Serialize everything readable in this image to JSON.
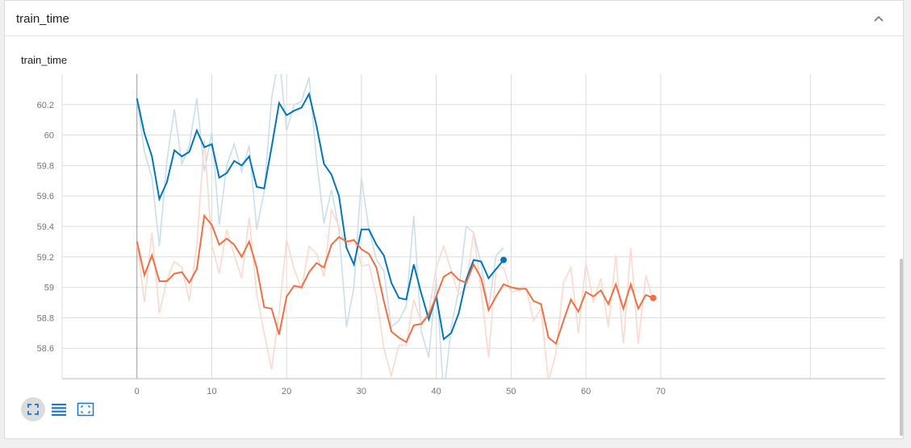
{
  "card": {
    "title": "train_time",
    "collapse_icon": "chevron-up-icon"
  },
  "chart_data": {
    "type": "line",
    "title": "train_time",
    "xlabel": "",
    "ylabel": "",
    "xlim": [
      -10,
      100
    ],
    "ylim": [
      58.4,
      60.4
    ],
    "x_ticks": [
      "0",
      "10",
      "20",
      "30",
      "40",
      "50",
      "60",
      "70"
    ],
    "y_ticks": [
      "58.6",
      "58.8",
      "59",
      "59.2",
      "59.4",
      "59.6",
      "59.8",
      "60",
      "60.2"
    ],
    "grid": true,
    "legend": "none",
    "series": [
      {
        "color": "#0077bb",
        "raw_color": "#c9dfee",
        "smoothed": [
          60.24,
          60.01,
          59.86,
          59.58,
          59.69,
          59.9,
          59.86,
          59.89,
          60.03,
          59.92,
          59.94,
          59.72,
          59.75,
          59.83,
          59.8,
          59.86,
          59.66,
          59.65,
          59.92,
          60.21,
          60.13,
          60.16,
          60.18,
          60.27,
          60.06,
          59.81,
          59.74,
          59.6,
          59.26,
          59.15,
          59.38,
          59.38,
          59.28,
          59.21,
          59.03,
          58.93,
          58.92,
          59.15,
          58.96,
          58.79,
          58.94,
          58.66,
          58.7,
          58.83,
          59.05,
          59.18,
          59.17,
          59.06,
          59.12,
          59.18
        ],
        "raw": [
          60.24,
          59.89,
          59.72,
          59.27,
          59.83,
          60.17,
          59.81,
          59.93,
          60.24,
          59.76,
          60.02,
          59.41,
          59.8,
          59.94,
          59.76,
          59.93,
          59.38,
          59.63,
          60.24,
          60.52,
          60.03,
          60.2,
          60.22,
          60.38,
          59.84,
          59.42,
          59.64,
          59.38,
          58.74,
          59.0,
          59.72,
          59.38,
          59.18,
          59.11,
          58.74,
          58.78,
          58.88,
          59.47,
          58.71,
          58.54,
          59.06,
          58.29,
          58.74,
          58.98,
          59.4,
          59.36,
          59.15,
          58.86,
          59.21,
          59.26
        ]
      },
      {
        "color": "#f26f41",
        "raw_color": "#fcd9cc",
        "smoothed": [
          59.3,
          59.08,
          59.21,
          59.04,
          59.04,
          59.09,
          59.1,
          59.03,
          59.12,
          59.47,
          59.41,
          59.28,
          59.32,
          59.28,
          59.2,
          59.3,
          59.13,
          58.87,
          58.86,
          58.69,
          58.94,
          59.01,
          59.0,
          59.1,
          59.16,
          59.13,
          59.28,
          59.33,
          59.3,
          59.31,
          59.25,
          59.22,
          59.13,
          58.91,
          58.71,
          58.67,
          58.64,
          58.75,
          58.76,
          58.82,
          58.94,
          59.07,
          59.1,
          59.05,
          59.03,
          59.15,
          59.06,
          58.85,
          58.94,
          59.02,
          59.0,
          58.99,
          58.99,
          58.91,
          58.89,
          58.67,
          58.63,
          58.78,
          58.92,
          58.84,
          58.97,
          58.94,
          58.98,
          58.89,
          59.02,
          58.86,
          59.02,
          58.86,
          58.95,
          58.93
        ],
        "raw": [
          59.3,
          58.9,
          59.36,
          58.83,
          59.05,
          59.17,
          59.13,
          58.91,
          59.28,
          59.97,
          59.28,
          59.09,
          59.38,
          59.21,
          59.06,
          59.46,
          58.96,
          58.7,
          58.46,
          58.83,
          59.31,
          59.12,
          58.99,
          59.27,
          59.22,
          59.07,
          59.51,
          59.4,
          59.27,
          59.32,
          59.14,
          59.15,
          58.94,
          58.6,
          58.42,
          58.62,
          58.62,
          58.92,
          58.77,
          58.84,
          59.13,
          59.27,
          59.11,
          58.95,
          59.0,
          59.36,
          58.98,
          58.54,
          59.12,
          59.13,
          58.97,
          58.98,
          59.0,
          58.78,
          58.86,
          58.38,
          58.57,
          59.03,
          59.13,
          58.7,
          59.16,
          58.9,
          59.06,
          58.74,
          59.21,
          58.63,
          59.26,
          58.63,
          59.08,
          58.91
        ]
      }
    ]
  },
  "toolbar": [
    {
      "icon": "fit-to-screen-icon",
      "active": true
    },
    {
      "icon": "log-scale-list-icon",
      "active": false
    },
    {
      "icon": "zoom-region-icon",
      "active": false
    }
  ]
}
